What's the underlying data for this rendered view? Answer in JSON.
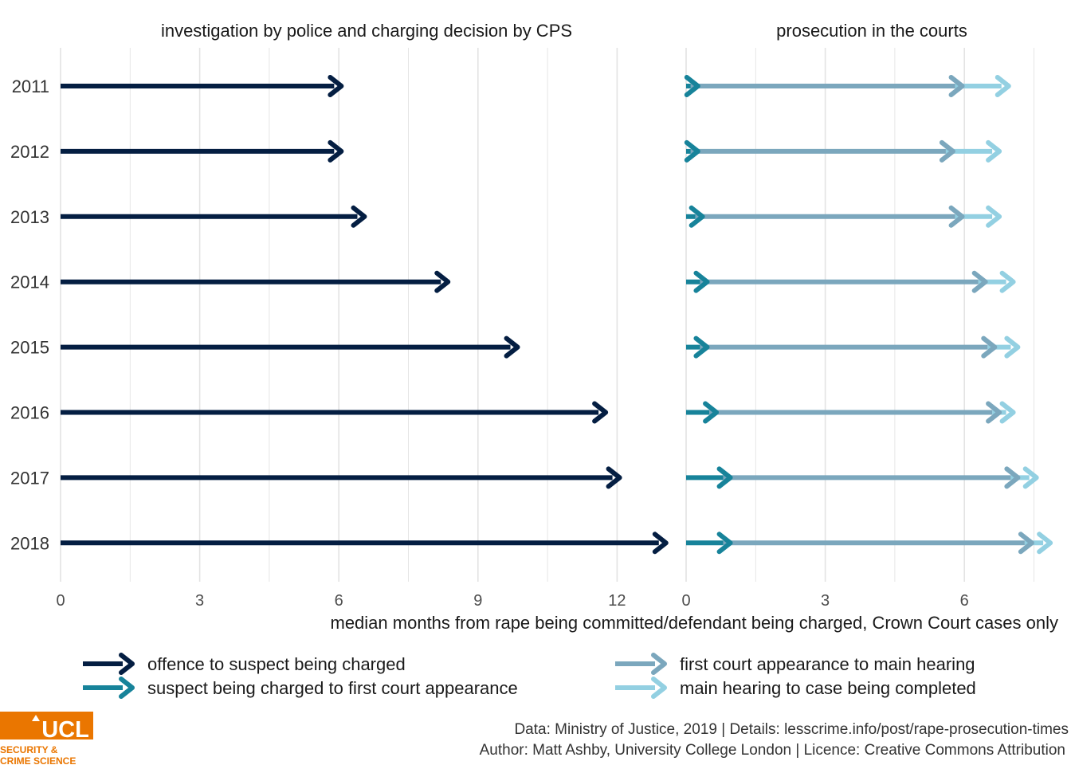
{
  "chart_data": {
    "type": "arrow",
    "facets": [
      {
        "title": "investigation by police and charging decision by CPS",
        "xticks": [
          0,
          3,
          6,
          9,
          12
        ],
        "xlim": [
          0,
          13.2
        ]
      },
      {
        "title": "prosecution in the courts",
        "xticks": [
          0,
          3,
          6
        ],
        "xlim": [
          0,
          8.0
        ]
      }
    ],
    "years": [
      "2011",
      "2012",
      "2013",
      "2014",
      "2015",
      "2016",
      "2017",
      "2018"
    ],
    "series": [
      {
        "name": "offence to suspect being charged",
        "color": "#041e42",
        "facet": 0,
        "start": [
          0,
          0,
          0,
          0,
          0,
          0,
          0,
          0
        ],
        "end": [
          5.9,
          5.9,
          6.4,
          8.2,
          9.7,
          11.6,
          11.9,
          12.9
        ]
      },
      {
        "name": "suspect being charged to first court appearance",
        "color": "#17839a",
        "facet": 1,
        "start": [
          0,
          0,
          0,
          0,
          0,
          0,
          0,
          0
        ],
        "end": [
          0.1,
          0.1,
          0.2,
          0.3,
          0.3,
          0.5,
          0.8,
          0.8
        ]
      },
      {
        "name": "first court appearance to main hearing",
        "color": "#7ba7bd",
        "facet": 1,
        "start": [
          0.1,
          0.1,
          0.2,
          0.3,
          0.3,
          0.5,
          0.8,
          0.8
        ],
        "end": [
          5.8,
          5.6,
          5.8,
          6.3,
          6.5,
          6.6,
          7.0,
          7.3
        ]
      },
      {
        "name": "main hearing to case being completed",
        "color": "#93d0e2",
        "facet": 1,
        "start": [
          5.8,
          5.6,
          5.8,
          6.3,
          6.5,
          6.6,
          7.0,
          7.3
        ],
        "end": [
          6.8,
          6.6,
          6.6,
          6.9,
          7.0,
          6.9,
          7.4,
          7.7
        ]
      }
    ],
    "xlabel": "median months from rape being committed/defendant being charged, Crown Court cases only",
    "ylabel": "",
    "grid": true,
    "legend_position": "bottom"
  },
  "caption": {
    "line1": "Data: Ministry of Justice, 2019 | Details: lesscrime.info/post/rape-prosecution-times",
    "line2": "Author: Matt Ashby, University College London | Licence: Creative Commons Attribution"
  },
  "logo": {
    "mark": "UCL",
    "line1": "SECURITY &",
    "line2": "CRIME SCIENCE",
    "color": "#ea7600"
  }
}
